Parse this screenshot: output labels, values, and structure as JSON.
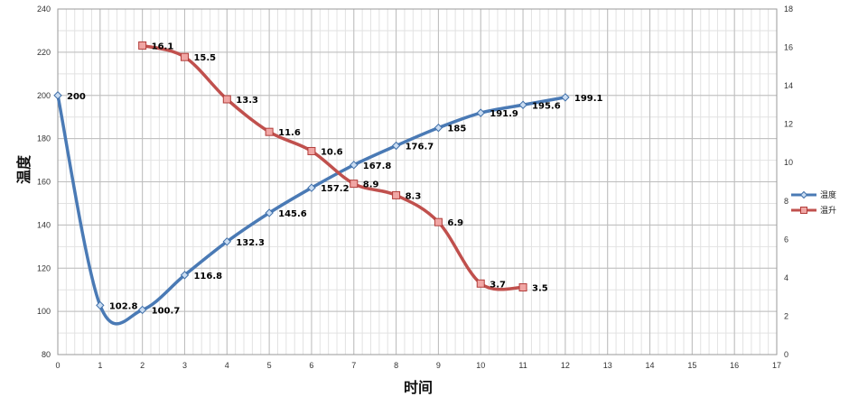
{
  "chart_data": {
    "type": "line",
    "xlabel": "时间",
    "ylabel": "温度",
    "xlim": [
      0,
      17
    ],
    "ylim": [
      80,
      240
    ],
    "y2lim": [
      0,
      18
    ],
    "grid": true,
    "legend_position": "right",
    "x_ticks": [
      0,
      1,
      2,
      3,
      4,
      5,
      6,
      7,
      8,
      9,
      10,
      11,
      12,
      13,
      14,
      15,
      16,
      17
    ],
    "y_ticks": [
      80,
      100,
      120,
      140,
      160,
      180,
      200,
      220,
      240
    ],
    "y2_ticks": [
      0,
      2,
      4,
      6,
      8,
      10,
      12,
      14,
      16,
      18
    ],
    "series": [
      {
        "name": "温度",
        "axis": "left",
        "color": "#4a7ab5",
        "marker": "diamond",
        "x": [
          0,
          1,
          2,
          3,
          4,
          5,
          6,
          7,
          8,
          9,
          10,
          11,
          12
        ],
        "values": [
          200,
          102.8,
          100.7,
          116.8,
          132.3,
          145.6,
          157.2,
          167.8,
          176.7,
          185,
          191.9,
          195.6,
          199.1
        ],
        "labels": [
          "200",
          "102.8",
          "100.7",
          "116.8",
          "132.3",
          "145.6",
          "157.2",
          "167.8",
          "176.7",
          "185",
          "191.9",
          "195.6",
          "199.1"
        ]
      },
      {
        "name": "温升",
        "axis": "right",
        "color": "#c0504d",
        "marker": "square",
        "x": [
          2,
          3,
          4,
          5,
          6,
          7,
          8,
          9,
          10,
          11
        ],
        "values": [
          16.1,
          15.5,
          13.3,
          11.6,
          10.6,
          8.9,
          8.3,
          6.9,
          3.7,
          3.5
        ],
        "labels": [
          "16.1",
          "15.5",
          "13.3",
          "11.6",
          "10.6",
          "8.9",
          "8.3",
          "6.9",
          "3.7",
          "3.5"
        ]
      }
    ]
  }
}
